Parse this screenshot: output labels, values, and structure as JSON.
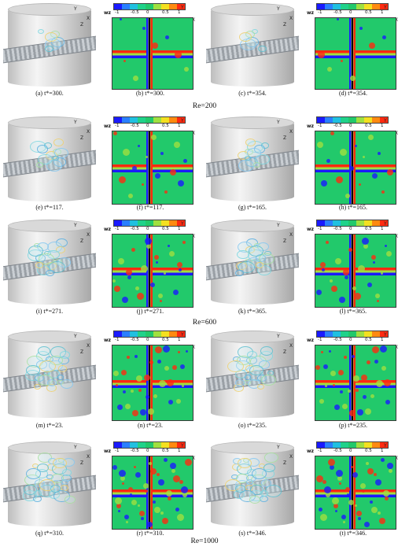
{
  "colorbar": {
    "label": "wz",
    "ticks": [
      "-1",
      "-0.5",
      "0",
      "0.5",
      "1"
    ],
    "colors": [
      "#1a1aff",
      "#2a7fff",
      "#20c0e0",
      "#20d28a",
      "#22c96b",
      "#a0e040",
      "#f4e020",
      "#ff8a10",
      "#ff2a10"
    ]
  },
  "axes": {
    "y": "Y",
    "x": "X",
    "z": "Z"
  },
  "captions": [
    "(a) t*=300.",
    "(b) t*=300.",
    "(c) t*=354.",
    "(d) t*=354.",
    "(e) t*=117.",
    "(f) t*=117.",
    "(g) t*=165.",
    "(h) t*=165.",
    "(i) t*=271.",
    "(j) t*=271.",
    "(k) t*=365.",
    "(l) t*=365.",
    "(m) t*=23.",
    "(n) t*=23.",
    "(o) t*=235.",
    "(p) t*=235.",
    "(q) t*=310.",
    "(r) t*=310.",
    "(s) t*=346.",
    "(t) t*=346."
  ],
  "groups": [
    "Re=200",
    "Re=600",
    "Re=1000"
  ]
}
